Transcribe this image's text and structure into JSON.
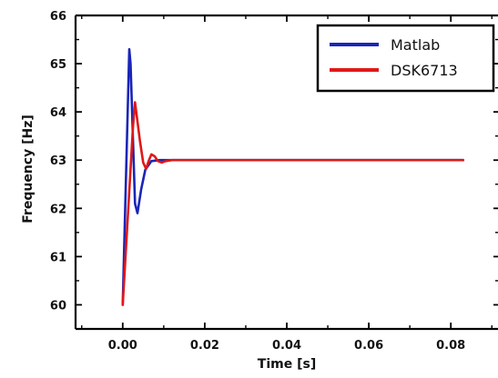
{
  "chart_data": {
    "type": "line",
    "xlabel": "Time [s]",
    "ylabel": "Frequency [Hz]",
    "xlim": [
      -0.0115,
      0.0915
    ],
    "ylim": [
      59.5,
      66
    ],
    "x_ticks": [
      0.0,
      0.02,
      0.04,
      0.06,
      0.08
    ],
    "x_tick_labels": [
      "0.00",
      "0.02",
      "0.04",
      "0.06",
      "0.08"
    ],
    "y_ticks": [
      60,
      61,
      62,
      63,
      64,
      65,
      66
    ],
    "y_tick_labels": [
      "60",
      "61",
      "62",
      "63",
      "64",
      "65",
      "66"
    ],
    "grid": false,
    "legend_position": "top-right",
    "series": [
      {
        "name": "Matlab",
        "color": "#1a25b8",
        "x": [
          0,
          0.0016,
          0.0019,
          0.003,
          0.0036,
          0.0045,
          0.0055,
          0.007,
          0.009,
          0.012,
          0.02,
          0.04,
          0.06,
          0.083
        ],
        "y": [
          60.0,
          65.3,
          65.0,
          62.1,
          61.9,
          62.4,
          62.8,
          62.98,
          63.0,
          63.0,
          63.0,
          63.0,
          63.0,
          63.0
        ]
      },
      {
        "name": "DSK6713",
        "color": "#e01818",
        "x": [
          0,
          0.0025,
          0.003,
          0.0042,
          0.005,
          0.0057,
          0.0063,
          0.007,
          0.0078,
          0.0086,
          0.0095,
          0.0105,
          0.012,
          0.02,
          0.04,
          0.06,
          0.083
        ],
        "y": [
          60.0,
          63.7,
          64.2,
          63.4,
          62.95,
          62.82,
          62.98,
          63.12,
          63.08,
          62.98,
          62.95,
          62.98,
          63.0,
          63.0,
          63.0,
          63.0,
          63.0
        ]
      }
    ]
  }
}
